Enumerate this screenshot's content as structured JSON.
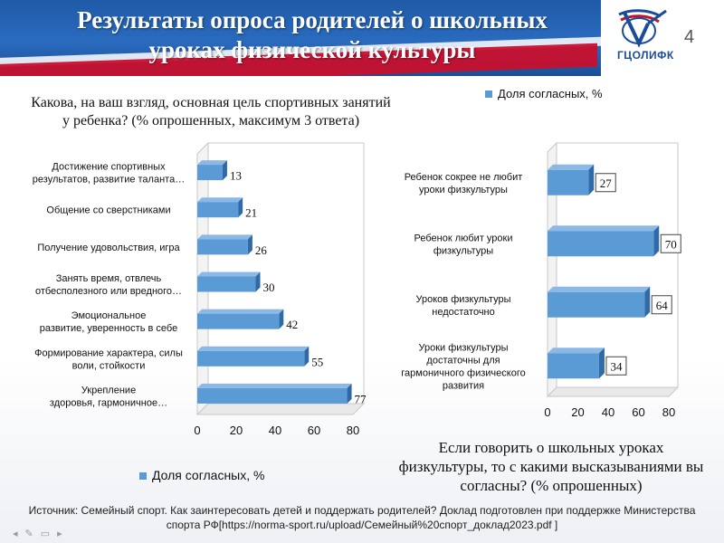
{
  "slide": {
    "title_line1": "Результаты опроса родителей о школьных",
    "title_line2": "уроках физической культуры",
    "page_number": "4",
    "logo_text": "ГЦОЛИФК",
    "source_line1": "Источник: Семейный спорт. Как заинтересовать детей и поддержать родителей? Доклад подготовлен при поддержке Министерства",
    "source_line2": "спорта РФ[https://norma-sport.ru/upload/Семейный%20спорт_доклад2023.pdf ]",
    "brand_colors": {
      "blue": "#1f5aa6",
      "red": "#c8102e",
      "bar": "#5b9bd5"
    }
  },
  "chart_data": [
    {
      "type": "bar",
      "orientation": "horizontal",
      "title_line1": "Какова, на ваш взгляд, основная цель спортивных занятий",
      "title_line2": "у ребенка? (% опрошенных, максимум 3 ответа)",
      "legend": "Доля согласных, %",
      "legend_placement": "bottom",
      "categories": [
        [
          "Достижение спортивных",
          "результатов, развитие таланта…"
        ],
        [
          "Общение со сверстниками"
        ],
        [
          "Получение удовольствия, игра"
        ],
        [
          "Занять время, отвлечь",
          "отбесполезного или вредного…"
        ],
        [
          "Эмоциональное",
          "развитие, уверенность в себе"
        ],
        [
          "Формирование характера, силы",
          "воли, стойкости"
        ],
        [
          "Укрепление",
          "здоровья, гармоничное…"
        ]
      ],
      "values": [
        13,
        21,
        26,
        30,
        42,
        55,
        77
      ],
      "xlim": [
        0,
        80
      ],
      "ticks": [
        "0",
        "20",
        "40",
        "60",
        "80"
      ],
      "grid": false
    },
    {
      "type": "bar",
      "orientation": "horizontal",
      "title_line1": "Если говорить о школьных уроках",
      "title_line2": "физкультуры, то с какими высказываниями вы",
      "title_line3": "согласны? (% опрошенных)",
      "legend": "Доля согласных, %",
      "legend_placement": "top",
      "categories": [
        [
          "Ребенок сокрее не любит",
          "уроки физкультуры"
        ],
        [
          "Ребенок любит уроки",
          "физкультуры"
        ],
        [
          "Уроков физкультуры",
          "недостаточно"
        ],
        [
          "Уроки физкультуры",
          "достаточны для",
          "гармоничного физического",
          "развития"
        ]
      ],
      "values": [
        27,
        70,
        64,
        34
      ],
      "xlim": [
        0,
        80
      ],
      "ticks": [
        "0",
        "20",
        "40",
        "60",
        "80"
      ],
      "grid": false
    }
  ]
}
